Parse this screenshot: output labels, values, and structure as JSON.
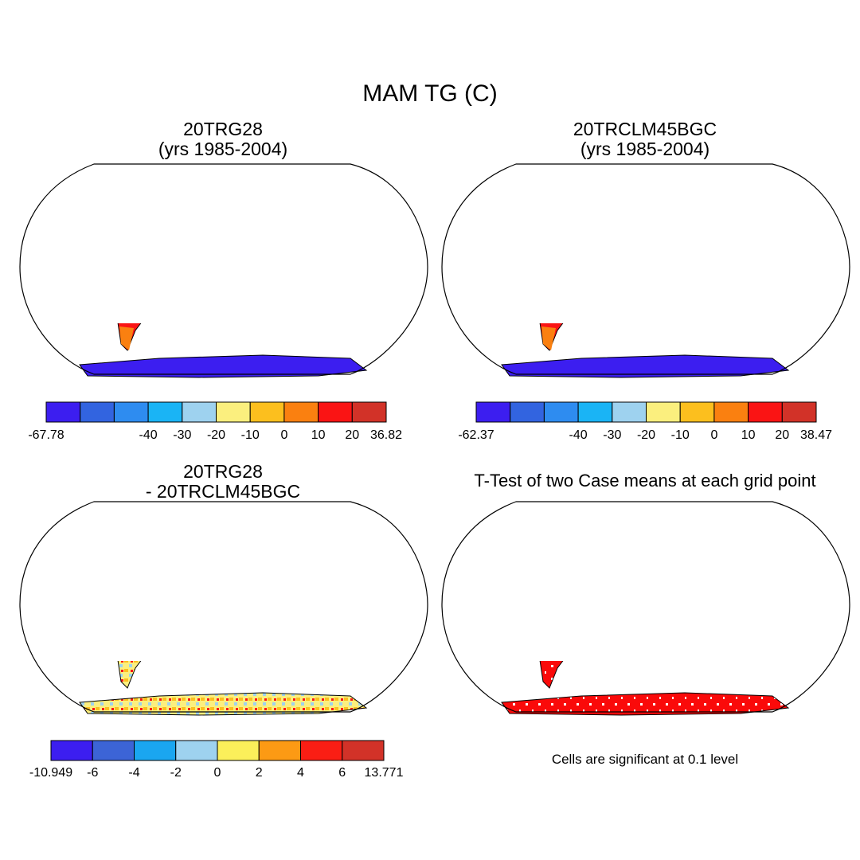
{
  "figure": {
    "title": "MAM TG (C)",
    "panels": [
      {
        "title_line1": "20TRG28",
        "title_line2": "(yrs 1985-2004)"
      },
      {
        "title_line1": "20TRCLM45BGC",
        "title_line2": "(yrs 1985-2004)"
      },
      {
        "title_line1": "20TRG28",
        "title_line2": "- 20TRCLM45BGC"
      },
      {
        "title_line1": "T-Test of two Case means at each grid point",
        "title_line2": ""
      }
    ],
    "significance_note": "Cells are significant at 0.1 level"
  },
  "colorbars": [
    {
      "labels": [
        "-67.78",
        "-40",
        "-30",
        "-20",
        "-10",
        "0",
        "10",
        "20",
        "36.82"
      ],
      "colors": [
        "#3c1ef0",
        "#3264e0",
        "#2e8cf0",
        "#1ab4f5",
        "#9ed2ef",
        "#fbef7e",
        "#fcbf1e",
        "#fa8010",
        "#fa1414",
        "#d23228"
      ]
    },
    {
      "labels": [
        "-62.37",
        "-40",
        "-30",
        "-20",
        "-10",
        "0",
        "10",
        "20",
        "38.47"
      ],
      "colors": [
        "#3c1ef0",
        "#3264e0",
        "#2e8cf0",
        "#1ab4f5",
        "#9ed2ef",
        "#fbef7e",
        "#fcbf1e",
        "#fa8010",
        "#fa1414",
        "#d23228"
      ]
    },
    {
      "labels": [
        "-10.949",
        "-6",
        "-4",
        "-2",
        "0",
        "2",
        "4",
        "6",
        "13.771"
      ],
      "colors": [
        "#3c1ef0",
        "#3c64d6",
        "#1aa6f0",
        "#9ed2ef",
        "#fbef5a",
        "#fc9a14",
        "#fa1e14",
        "#d23228"
      ]
    }
  ],
  "map_colors": {
    "tropics": "#fa1414",
    "hot": "#d23228",
    "warm": "#fa8010",
    "mild": "#fcbf1e",
    "cool": "#fbef7e",
    "cold": "#9ed2ef",
    "colder": "#1ab4f5",
    "antarctica": "#3c1ef0",
    "diff_light_blue": "#9ed2ef",
    "diff_yellow": "#fbef7e",
    "diff_orange": "#fcbf1e",
    "significant": "#fa0a0a"
  }
}
